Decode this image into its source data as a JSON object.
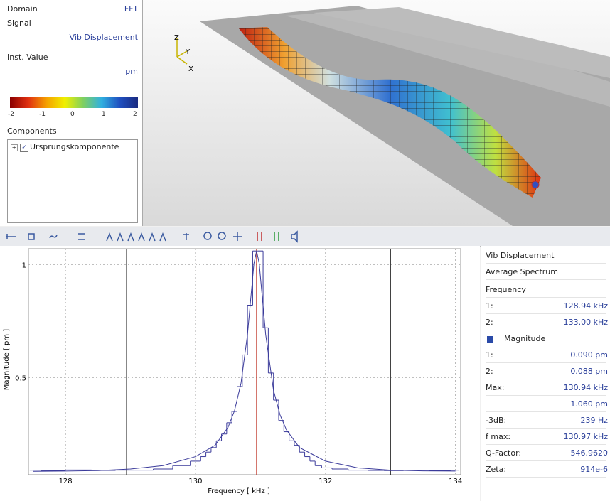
{
  "left_panel": {
    "domain_label": "Domain",
    "domain_value": "FFT",
    "signal_label": "Signal",
    "signal_value": "Vib Displacement",
    "inst_label": "Inst. Value",
    "unit": "pm",
    "colorbar_ticks": [
      -2,
      -1,
      0,
      1,
      2
    ],
    "components_label": "Components",
    "component": "Ursprungskomponente"
  },
  "view_axes": {
    "z": "Z",
    "y": "Y",
    "x": "X"
  },
  "chart_data": {
    "type": "line",
    "x_label": "Frequency [ kHz ]",
    "y_label": "Magnitude [ pm ]",
    "xlim": [
      127.43,
      134.08
    ],
    "ylim": [
      0.07,
      1.07
    ],
    "xticks": [
      128,
      130,
      132,
      134
    ],
    "yticks": [
      0.5,
      1
    ],
    "grid": true,
    "cursors": [
      128.94,
      133.0
    ],
    "cursor_color": "#222222",
    "peak_marker": 130.94,
    "peak_color": "#c0392b",
    "series": [
      {
        "style": "step",
        "color": "#3a3a9a",
        "x": [
          127.45,
          127.8,
          128.2,
          128.6,
          128.94,
          129.2,
          129.5,
          129.8,
          130.04,
          130.12,
          130.2,
          130.28,
          130.36,
          130.44,
          130.52,
          130.6,
          130.68,
          130.76,
          130.84,
          130.92,
          131.0,
          131.08,
          131.16,
          131.24,
          131.32,
          131.4,
          131.48,
          131.56,
          131.64,
          131.72,
          131.8,
          131.88,
          132.0,
          132.2,
          132.5,
          132.8,
          133.0,
          133.4,
          133.8,
          134.05
        ],
        "values": [
          0.09,
          0.088,
          0.091,
          0.089,
          0.09,
          0.09,
          0.095,
          0.11,
          0.13,
          0.15,
          0.17,
          0.19,
          0.22,
          0.25,
          0.3,
          0.35,
          0.46,
          0.6,
          0.82,
          1.06,
          1.06,
          0.72,
          0.52,
          0.4,
          0.31,
          0.26,
          0.22,
          0.2,
          0.17,
          0.15,
          0.13,
          0.11,
          0.1,
          0.095,
          0.09,
          0.089,
          0.088,
          0.09,
          0.089,
          0.09
        ]
      },
      {
        "style": "line",
        "color": "#3a3a9a",
        "x": [
          127.5,
          128,
          128.5,
          129,
          129.5,
          130,
          130.3,
          130.5,
          130.6,
          130.7,
          130.8,
          130.85,
          130.9,
          130.94,
          130.98,
          131.03,
          131.08,
          131.2,
          131.3,
          131.4,
          131.6,
          131.8,
          132,
          132.5,
          133,
          133.5,
          134
        ],
        "values": [
          0.085,
          0.086,
          0.088,
          0.095,
          0.11,
          0.15,
          0.2,
          0.279,
          0.353,
          0.474,
          0.69,
          0.848,
          1.006,
          1.06,
          1.006,
          0.848,
          0.69,
          0.444,
          0.335,
          0.268,
          0.19,
          0.16,
          0.13,
          0.1,
          0.09,
          0.087,
          0.086
        ]
      }
    ]
  },
  "readout": {
    "signal": "Vib Displacement",
    "kind": "Average Spectrum",
    "frequency_label": "Frequency",
    "rows_freq": [
      [
        "1:",
        "128.94 kHz"
      ],
      [
        "2:",
        "133.00 kHz"
      ]
    ],
    "magnitude_label": "Magnitude",
    "rows_mag": [
      [
        "1:",
        "0.090 pm"
      ],
      [
        "2:",
        "0.088 pm"
      ],
      [
        "Max:",
        "130.94 kHz"
      ],
      [
        "",
        "1.060 pm"
      ],
      [
        "-3dB:",
        "239 Hz"
      ],
      [
        "f max:",
        "130.97 kHz"
      ],
      [
        "Q-Factor:",
        "546.9620"
      ],
      [
        "Zeta:",
        "914e-6"
      ]
    ]
  }
}
